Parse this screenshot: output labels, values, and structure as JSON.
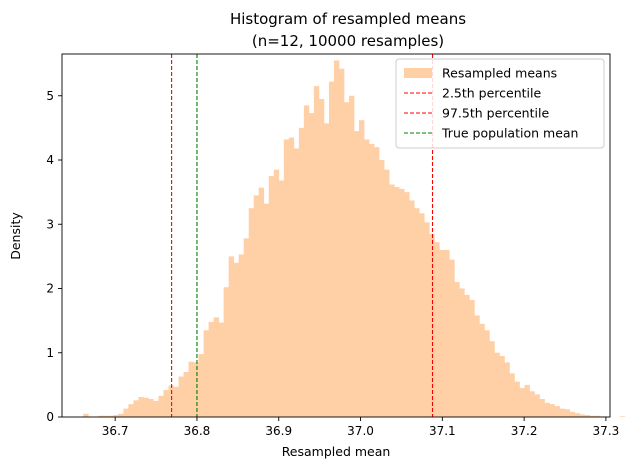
{
  "chart_data": {
    "type": "bar",
    "title": "Histogram of resampled means",
    "subtitle": "(n=12, 10000 resamples)",
    "xlabel": "Resampled mean",
    "ylabel": "Density",
    "xlim": [
      36.635,
      37.305
    ],
    "ylim": [
      0,
      5.65
    ],
    "xticks": [
      36.7,
      36.8,
      36.9,
      37.0,
      37.1,
      37.2,
      37.3
    ],
    "xtick_labels": [
      "36.7",
      "36.8",
      "36.9",
      "37.0",
      "37.1",
      "37.2",
      "37.3"
    ],
    "yticks": [
      0,
      1,
      2,
      3,
      4,
      5
    ],
    "ytick_labels": [
      "0",
      "1",
      "2",
      "3",
      "4",
      "5"
    ],
    "grid": false,
    "legend_position": "top-right",
    "bin_start": 36.661,
    "bin_width": 0.00613,
    "series": [
      {
        "name": "Resampled means",
        "color": "#ffcfa6",
        "values": [
          0.05,
          0,
          0,
          0.02,
          0.02,
          0.02,
          0.03,
          0.05,
          0.13,
          0.2,
          0.26,
          0.31,
          0.3,
          0.28,
          0.25,
          0.33,
          0.42,
          0.49,
          0.47,
          0.63,
          0.7,
          0.86,
          0.85,
          0.98,
          1.35,
          1.48,
          1.55,
          1.47,
          2.02,
          2.5,
          2.4,
          2.53,
          2.78,
          3.25,
          3.45,
          3.57,
          3.32,
          3.75,
          3.85,
          3.68,
          4.32,
          4.35,
          4.18,
          4.5,
          4.85,
          4.73,
          5.15,
          4.95,
          4.57,
          5.22,
          5.55,
          5.42,
          4.9,
          5.0,
          4.45,
          4.62,
          4.32,
          4.25,
          4.2,
          4.0,
          3.85,
          3.62,
          3.58,
          3.55,
          3.5,
          3.37,
          3.25,
          3.17,
          3.03,
          2.85,
          2.72,
          2.6,
          2.6,
          2.45,
          2.1,
          2.0,
          1.9,
          1.82,
          1.58,
          1.45,
          1.35,
          1.18,
          1.0,
          0.95,
          0.85,
          0.68,
          0.55,
          0.45,
          0.5,
          0.4,
          0.35,
          0.28,
          0.22,
          0.2,
          0.17,
          0.13,
          0.12,
          0.08,
          0.06,
          0.04,
          0.03,
          0.02,
          0.02,
          0.01,
          0,
          0,
          0,
          0.01,
          0,
          0,
          0.01,
          0,
          0,
          0,
          0,
          0,
          0,
          0,
          0.01
        ]
      },
      {
        "name": "2.5th percentile",
        "type": "vline",
        "x": 36.769,
        "color": "#ff0000",
        "style": "dashed"
      },
      {
        "name": "97.5th percentile",
        "type": "vline",
        "x": 37.088,
        "color": "#ff0000",
        "style": "dashed"
      },
      {
        "name": "True population mean",
        "type": "vline",
        "x": 36.8,
        "color": "#008000",
        "style": "dashed"
      }
    ]
  }
}
